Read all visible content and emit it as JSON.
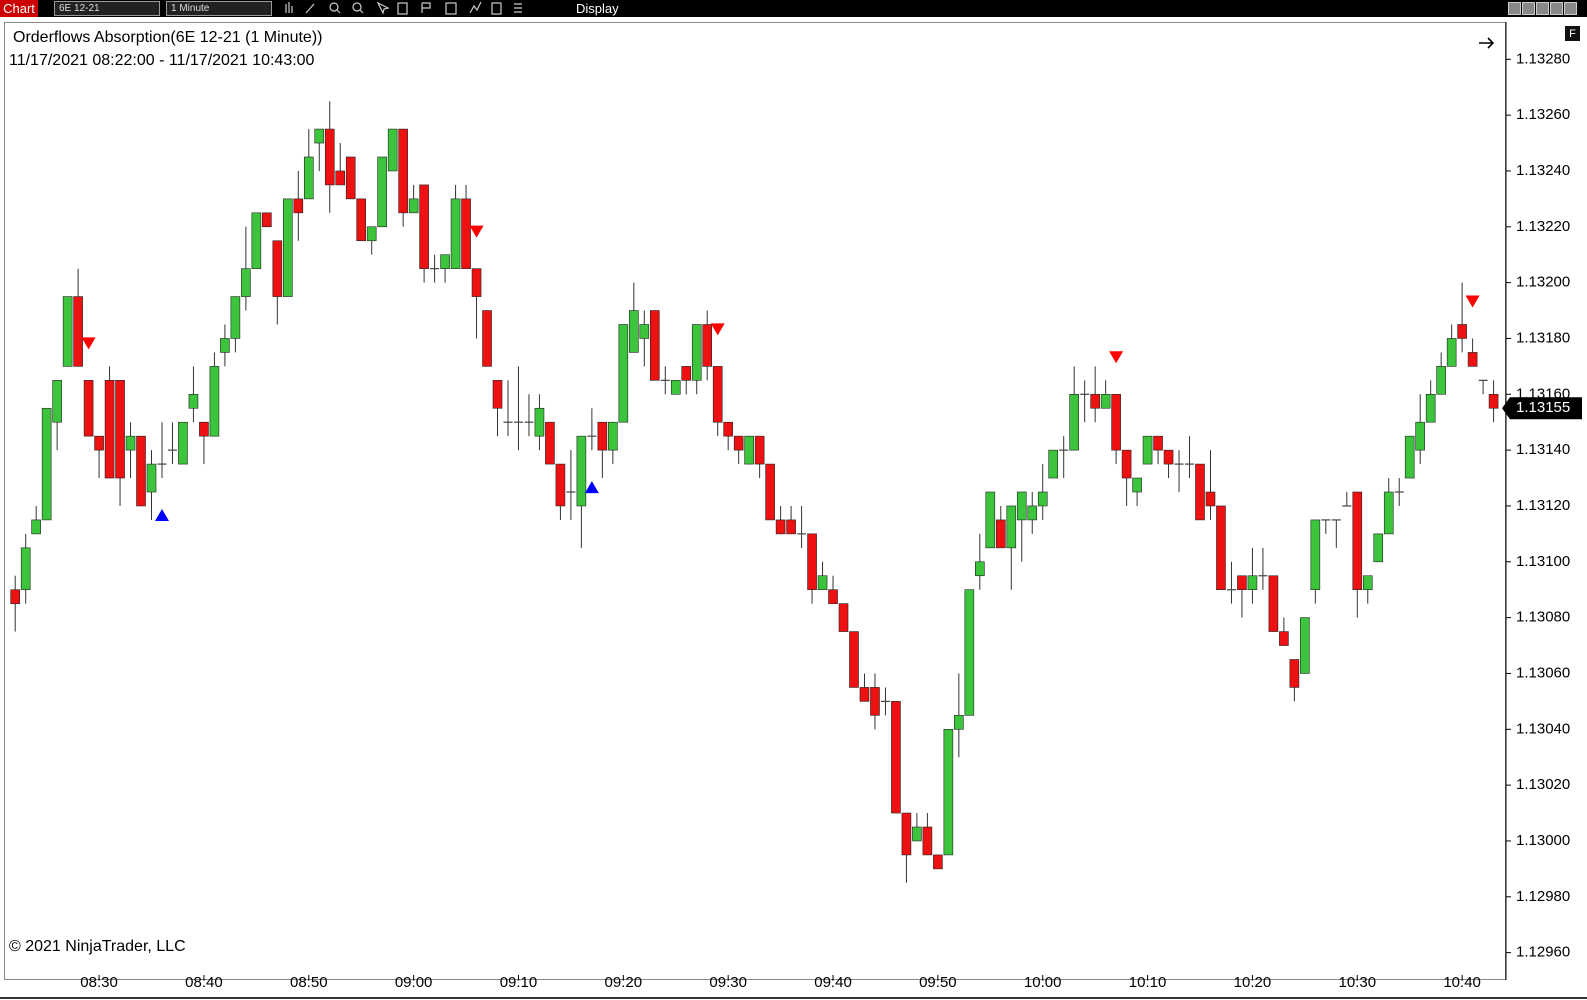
{
  "toolbar": {
    "chart_tab": "Chart",
    "instrument": "6E 12-21",
    "interval": "1 Minute",
    "menu": "Display",
    "panel_button": "F"
  },
  "chart_data": {
    "type": "candlestick",
    "title": "Orderflows Absorption(6E 12-21 (1 Minute))",
    "subtitle": "11/17/2021 08:22:00 - 11/17/2021 10:43:00",
    "copyright": "© 2021 NinjaTrader, LLC",
    "x": [
      "08:22",
      "08:23",
      "08:24",
      "08:25",
      "08:26",
      "08:27",
      "08:28",
      "08:29",
      "08:30",
      "08:31",
      "08:32",
      "08:33",
      "08:34",
      "08:35",
      "08:36",
      "08:37",
      "08:38",
      "08:39",
      "08:40",
      "08:41",
      "08:42",
      "08:43",
      "08:44",
      "08:45",
      "08:46",
      "08:47",
      "08:48",
      "08:49",
      "08:50",
      "08:51",
      "08:52",
      "08:53",
      "08:54",
      "08:55",
      "08:56",
      "08:57",
      "08:58",
      "08:59",
      "09:00",
      "09:01",
      "09:02",
      "09:03",
      "09:04",
      "09:05",
      "09:06",
      "09:07",
      "09:08",
      "09:09",
      "09:10",
      "09:11",
      "09:12",
      "09:13",
      "09:14",
      "09:15",
      "09:16",
      "09:17",
      "09:18",
      "09:19",
      "09:20",
      "09:21",
      "09:22",
      "09:23",
      "09:24",
      "09:25",
      "09:26",
      "09:27",
      "09:28",
      "09:29",
      "09:30",
      "09:31",
      "09:32",
      "09:33",
      "09:34",
      "09:35",
      "09:36",
      "09:37",
      "09:38",
      "09:39",
      "09:40",
      "09:41",
      "09:42",
      "09:43",
      "09:44",
      "09:45",
      "09:46",
      "09:47",
      "09:48",
      "09:49",
      "09:50",
      "09:51",
      "09:52",
      "09:53",
      "09:54",
      "09:55",
      "09:56",
      "09:57",
      "09:58",
      "09:59",
      "10:00",
      "10:01",
      "10:02",
      "10:03",
      "10:04",
      "10:05",
      "10:06",
      "10:07",
      "10:08",
      "10:09",
      "10:10",
      "10:11",
      "10:12",
      "10:13",
      "10:14",
      "10:15",
      "10:16",
      "10:17",
      "10:18",
      "10:19",
      "10:20",
      "10:21",
      "10:22",
      "10:23",
      "10:24",
      "10:25",
      "10:26",
      "10:27",
      "10:28",
      "10:29",
      "10:30",
      "10:31",
      "10:32",
      "10:33",
      "10:34",
      "10:35",
      "10:36",
      "10:37",
      "10:38",
      "10:39",
      "10:40",
      "10:41",
      "10:42",
      "10:43"
    ],
    "open": [
      1.1309,
      1.1309,
      1.1311,
      1.13115,
      1.1315,
      1.1317,
      1.13195,
      1.13165,
      1.13145,
      1.13165,
      1.13165,
      1.1314,
      1.13145,
      1.13125,
      1.13135,
      1.1314,
      1.13135,
      1.13155,
      1.1315,
      1.13145,
      1.13175,
      1.1318,
      1.13195,
      1.13205,
      1.13225,
      1.13215,
      1.13195,
      1.1323,
      1.1323,
      1.1325,
      1.13255,
      1.1324,
      1.13245,
      1.1323,
      1.13215,
      1.1322,
      1.1324,
      1.13255,
      1.13225,
      1.13235,
      1.13205,
      1.13205,
      1.13205,
      1.1323,
      1.13205,
      1.1319,
      1.13165,
      1.1315,
      1.1315,
      1.1315,
      1.13145,
      1.1315,
      1.13135,
      1.13125,
      1.1312,
      1.13145,
      1.1315,
      1.1314,
      1.1315,
      1.13175,
      1.1318,
      1.1319,
      1.13165,
      1.1316,
      1.1317,
      1.13165,
      1.13185,
      1.1317,
      1.1315,
      1.13145,
      1.13135,
      1.13145,
      1.13135,
      1.13115,
      1.13115,
      1.1311,
      1.1311,
      1.1309,
      1.1309,
      1.13085,
      1.13075,
      1.13055,
      1.13055,
      1.1305,
      1.1305,
      1.1301,
      1.13,
      1.13005,
      1.12995,
      1.12995,
      1.1304,
      1.13045,
      1.13095,
      1.13105,
      1.13115,
      1.13105,
      1.13115,
      1.13115,
      1.1312,
      1.1313,
      1.1314,
      1.1314,
      1.1316,
      1.1316,
      1.13155,
      1.1316,
      1.1314,
      1.13125,
      1.13135,
      1.13145,
      1.1314,
      1.13135,
      1.13135,
      1.13135,
      1.13125,
      1.1312,
      1.1309,
      1.13095,
      1.1309,
      1.13095,
      1.13095,
      1.13075,
      1.13065,
      1.1306,
      1.1309,
      1.13115,
      1.13115,
      1.1312,
      1.13125,
      1.1309,
      1.131,
      1.1311,
      1.13125,
      1.1313,
      1.1314,
      1.1315,
      1.1316,
      1.1317,
      1.13185,
      1.13175,
      1.13165,
      1.1316
    ],
    "high": [
      1.13095,
      1.1311,
      1.1312,
      1.13155,
      1.13165,
      1.13195,
      1.13205,
      1.13165,
      1.13145,
      1.1317,
      1.13165,
      1.1315,
      1.13145,
      1.1314,
      1.1315,
      1.1315,
      1.1315,
      1.1317,
      1.1315,
      1.13175,
      1.13185,
      1.13195,
      1.1322,
      1.13225,
      1.13225,
      1.13215,
      1.1323,
      1.1324,
      1.13255,
      1.13255,
      1.13265,
      1.1325,
      1.13245,
      1.1323,
      1.1322,
      1.13245,
      1.13255,
      1.13255,
      1.13235,
      1.13235,
      1.1321,
      1.1321,
      1.13235,
      1.13235,
      1.13205,
      1.1319,
      1.13165,
      1.13165,
      1.1317,
      1.1316,
      1.1316,
      1.1315,
      1.13135,
      1.1314,
      1.13145,
      1.13155,
      1.1315,
      1.1315,
      1.13185,
      1.132,
      1.1319,
      1.1319,
      1.1317,
      1.13165,
      1.1317,
      1.13185,
      1.1319,
      1.1317,
      1.1315,
      1.13145,
      1.13145,
      1.13145,
      1.13135,
      1.1312,
      1.1312,
      1.1312,
      1.1311,
      1.131,
      1.13095,
      1.13085,
      1.13075,
      1.1306,
      1.1306,
      1.13055,
      1.1305,
      1.1301,
      1.1301,
      1.1301,
      1.12995,
      1.1304,
      1.1306,
      1.1309,
      1.1311,
      1.13125,
      1.1312,
      1.1312,
      1.13125,
      1.13125,
      1.13135,
      1.1314,
      1.13145,
      1.1317,
      1.13165,
      1.1317,
      1.13165,
      1.1316,
      1.1314,
      1.1313,
      1.13145,
      1.13145,
      1.1314,
      1.1314,
      1.13145,
      1.13135,
      1.1314,
      1.1312,
      1.131,
      1.13095,
      1.13105,
      1.13105,
      1.13095,
      1.1308,
      1.13065,
      1.1308,
      1.13115,
      1.13115,
      1.13115,
      1.13125,
      1.13125,
      1.13095,
      1.1311,
      1.1313,
      1.1313,
      1.13145,
      1.1316,
      1.13165,
      1.13175,
      1.13185,
      1.132,
      1.1318,
      1.13165,
      1.13165
    ],
    "low": [
      1.13075,
      1.13085,
      1.1311,
      1.13115,
      1.1314,
      1.1317,
      1.1317,
      1.13145,
      1.1313,
      1.1313,
      1.1312,
      1.1313,
      1.1312,
      1.13115,
      1.1313,
      1.13135,
      1.13135,
      1.1315,
      1.13135,
      1.13145,
      1.1317,
      1.13175,
      1.1319,
      1.13205,
      1.1322,
      1.13185,
      1.13195,
      1.13215,
      1.1323,
      1.1324,
      1.13225,
      1.13235,
      1.1323,
      1.13215,
      1.1321,
      1.1322,
      1.1324,
      1.1322,
      1.13225,
      1.132,
      1.132,
      1.132,
      1.13205,
      1.13205,
      1.1318,
      1.1317,
      1.13145,
      1.13145,
      1.1314,
      1.13145,
      1.1314,
      1.13135,
      1.13115,
      1.13115,
      1.13105,
      1.1314,
      1.1313,
      1.13135,
      1.1315,
      1.13175,
      1.1317,
      1.13165,
      1.1316,
      1.1316,
      1.1316,
      1.1316,
      1.13165,
      1.13145,
      1.1314,
      1.13135,
      1.13135,
      1.1313,
      1.13115,
      1.1311,
      1.1311,
      1.13105,
      1.13085,
      1.1309,
      1.13085,
      1.13075,
      1.13055,
      1.1305,
      1.1304,
      1.13045,
      1.1301,
      1.12985,
      1.13,
      1.12995,
      1.1299,
      1.12995,
      1.1303,
      1.13045,
      1.1309,
      1.13105,
      1.13105,
      1.1309,
      1.131,
      1.1311,
      1.13115,
      1.1313,
      1.1313,
      1.1314,
      1.1315,
      1.1315,
      1.13155,
      1.13135,
      1.1312,
      1.1312,
      1.13135,
      1.13135,
      1.1313,
      1.13125,
      1.1313,
      1.13115,
      1.13115,
      1.1309,
      1.13085,
      1.1308,
      1.13085,
      1.1309,
      1.13075,
      1.1307,
      1.1305,
      1.1306,
      1.13085,
      1.1311,
      1.13105,
      1.1312,
      1.1308,
      1.13085,
      1.131,
      1.1311,
      1.1312,
      1.1313,
      1.13135,
      1.1315,
      1.1316,
      1.1317,
      1.13175,
      1.1317,
      1.1316,
      1.1315
    ],
    "close": [
      1.13085,
      1.13105,
      1.13115,
      1.13155,
      1.13165,
      1.13195,
      1.1317,
      1.13145,
      1.1314,
      1.1313,
      1.1313,
      1.13145,
      1.1312,
      1.13135,
      1.13135,
      1.1314,
      1.1315,
      1.1316,
      1.13145,
      1.1317,
      1.1318,
      1.13195,
      1.13205,
      1.13225,
      1.1322,
      1.13195,
      1.1323,
      1.13225,
      1.13245,
      1.13255,
      1.13235,
      1.13235,
      1.1323,
      1.13215,
      1.1322,
      1.13245,
      1.13255,
      1.13225,
      1.1323,
      1.13205,
      1.13205,
      1.1321,
      1.1323,
      1.13205,
      1.13195,
      1.1317,
      1.13155,
      1.1315,
      1.1315,
      1.1315,
      1.13155,
      1.13135,
      1.1312,
      1.13125,
      1.13145,
      1.13145,
      1.1314,
      1.1315,
      1.13185,
      1.1319,
      1.13185,
      1.13165,
      1.13165,
      1.13165,
      1.13165,
      1.13185,
      1.1317,
      1.1315,
      1.13145,
      1.1314,
      1.13145,
      1.13135,
      1.13115,
      1.1311,
      1.1311,
      1.1311,
      1.1309,
      1.13095,
      1.13085,
      1.13075,
      1.13055,
      1.1305,
      1.13045,
      1.1305,
      1.1301,
      1.12995,
      1.13005,
      1.12995,
      1.1299,
      1.1304,
      1.13045,
      1.1309,
      1.131,
      1.13125,
      1.13105,
      1.1312,
      1.13125,
      1.1312,
      1.13125,
      1.1314,
      1.1314,
      1.1316,
      1.1316,
      1.13155,
      1.1316,
      1.1314,
      1.1313,
      1.1313,
      1.13145,
      1.1314,
      1.13135,
      1.13135,
      1.13135,
      1.13115,
      1.1312,
      1.1309,
      1.1309,
      1.1309,
      1.13095,
      1.13095,
      1.13075,
      1.1307,
      1.13055,
      1.1308,
      1.13115,
      1.13115,
      1.13115,
      1.1312,
      1.1309,
      1.13095,
      1.1311,
      1.13125,
      1.13125,
      1.13145,
      1.1315,
      1.1316,
      1.1317,
      1.1318,
      1.1318,
      1.1317,
      1.13165,
      1.13155
    ],
    "up_color": "#3cc43c",
    "down_color": "#ee1111",
    "doji_color": "#444444",
    "up_signals": [
      "08:36",
      "09:17"
    ],
    "down_signals": [
      "08:29",
      "09:06",
      "09:29",
      "10:07",
      "10:41"
    ],
    "up_signal_color": "#0000ff",
    "down_signal_color": "#ff0000",
    "xticks": [
      "08:30",
      "08:40",
      "08:50",
      "09:00",
      "09:10",
      "09:20",
      "09:30",
      "09:40",
      "09:50",
      "10:00",
      "10:10",
      "10:20",
      "10:30",
      "10:40"
    ],
    "ylim": [
      1.12957,
      1.13293
    ],
    "yticks": [
      {
        "value": 1.1328,
        "label": "1.13280"
      },
      {
        "value": 1.1326,
        "label": "1.13260"
      },
      {
        "value": 1.1324,
        "label": "1.13240"
      },
      {
        "value": 1.1322,
        "label": "1.13220"
      },
      {
        "value": 1.132,
        "label": "1.13200"
      },
      {
        "value": 1.1318,
        "label": "1.13180"
      },
      {
        "value": 1.1316,
        "label": "1.13160"
      },
      {
        "value": 1.1314,
        "label": "1.13140"
      },
      {
        "value": 1.1312,
        "label": "1.13120"
      },
      {
        "value": 1.131,
        "label": "1.13100"
      },
      {
        "value": 1.1308,
        "label": "1.13080"
      },
      {
        "value": 1.1306,
        "label": "1.13060"
      },
      {
        "value": 1.1304,
        "label": "1.13040"
      },
      {
        "value": 1.1302,
        "label": "1.13020"
      },
      {
        "value": 1.13,
        "label": "1.13000"
      },
      {
        "value": 1.1298,
        "label": "1.12980"
      },
      {
        "value": 1.1296,
        "label": "1.12960"
      }
    ],
    "grid": false,
    "last_price": {
      "value": 1.13155,
      "label": "1.13155"
    }
  }
}
